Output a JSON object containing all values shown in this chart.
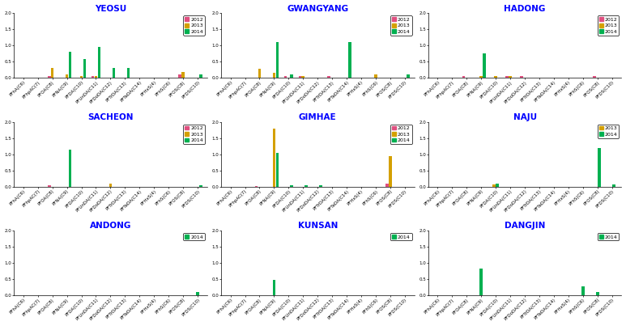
{
  "categories": [
    "PFhA(C6)",
    "PFhpAC(7)",
    "PFOA(C8)",
    "PFNA(C9)",
    "PFDA(C10)",
    "PFUnDA(C11)",
    "PFDoDA(C12)",
    "PFTrDA(C13)",
    "PFTeDA(C14)",
    "PFHxS(4)",
    "PFhS(C6)",
    "PFOS(C8)",
    "PFDS(C10)"
  ],
  "colors": {
    "2012": "#e05080",
    "2013": "#d4a000",
    "2014": "#00b050"
  },
  "subplots": [
    {
      "title": "YEOSU",
      "legend_years": [
        "2012",
        "2013",
        "2014"
      ],
      "data": {
        "2012": [
          0,
          0,
          0.05,
          0,
          0,
          0.05,
          0,
          0,
          0,
          0,
          0,
          0.1,
          0
        ],
        "2013": [
          0,
          0,
          0.3,
          0.1,
          0.07,
          0.05,
          0,
          0,
          0,
          0,
          0,
          0.18,
          0
        ],
        "2014": [
          0,
          0,
          0,
          0.82,
          0.58,
          0.95,
          0.32,
          0.3,
          0,
          0,
          0,
          0,
          0.1
        ]
      }
    },
    {
      "title": "GWANGYANG",
      "legend_years": [
        "2012",
        "2013",
        "2014"
      ],
      "data": {
        "2012": [
          0,
          0,
          0,
          0,
          0.05,
          0.05,
          0,
          0.05,
          0,
          0,
          0,
          0,
          0
        ],
        "2013": [
          0,
          0,
          0.28,
          0.15,
          0,
          0.05,
          0,
          0,
          0,
          0,
          0.1,
          0,
          0
        ],
        "2014": [
          0,
          0,
          0,
          1.1,
          0.12,
          0,
          0,
          0,
          1.1,
          0,
          0,
          0,
          0.1
        ]
      }
    },
    {
      "title": "HADONG",
      "legend_years": [
        "2012",
        "2013",
        "2014"
      ],
      "data": {
        "2012": [
          0,
          0,
          0.05,
          0,
          0,
          0.05,
          0.05,
          0,
          0,
          0,
          0,
          0.05,
          0
        ],
        "2013": [
          0,
          0,
          0,
          0.05,
          0.05,
          0.05,
          0,
          0,
          0,
          0,
          0,
          0,
          0
        ],
        "2014": [
          0,
          0,
          0,
          0.75,
          0,
          0,
          0,
          0,
          0,
          0,
          0,
          0,
          0
        ]
      }
    },
    {
      "title": "SACHEON",
      "legend_years": [
        "2012",
        "2013",
        "2014"
      ],
      "data": {
        "2012": [
          0,
          0,
          0.05,
          0,
          0,
          0,
          0,
          0,
          0,
          0,
          0,
          0,
          0
        ],
        "2013": [
          0,
          0,
          0,
          0,
          0,
          0,
          0.1,
          0,
          0,
          0,
          0,
          0,
          0
        ],
        "2014": [
          0,
          0,
          0,
          1.15,
          0,
          0,
          0,
          0,
          0,
          0,
          0,
          0,
          0.05
        ]
      }
    },
    {
      "title": "GIMHAE",
      "legend_years": [
        "2012",
        "2013",
        "2014"
      ],
      "data": {
        "2012": [
          0,
          0,
          0.03,
          0,
          0,
          0,
          0,
          0,
          0,
          0,
          0,
          0.1,
          0
        ],
        "2013": [
          0,
          0,
          0,
          1.8,
          0,
          0,
          0,
          0,
          0,
          0,
          0,
          0.95,
          0
        ],
        "2014": [
          0,
          0,
          0,
          1.05,
          0.05,
          0.05,
          0.05,
          0,
          0,
          0,
          0,
          0,
          0
        ]
      }
    },
    {
      "title": "NAJU",
      "legend_years": [
        "2013",
        "2014"
      ],
      "data": {
        "2013": [
          0,
          0,
          0,
          0,
          0.07,
          0,
          0,
          0,
          0,
          0,
          0,
          0,
          0
        ],
        "2014": [
          0,
          0,
          0,
          0,
          0.1,
          0,
          0,
          0,
          0,
          0,
          0,
          1.2,
          0.07
        ]
      }
    },
    {
      "title": "ANDONG",
      "legend_years": [
        "2014"
      ],
      "data": {
        "2014": [
          0,
          0,
          0,
          0,
          0,
          0,
          0,
          0,
          0,
          0,
          0,
          0,
          0.1
        ]
      }
    },
    {
      "title": "KUNSAN",
      "legend_years": [
        "2014"
      ],
      "data": {
        "2014": [
          0,
          0,
          0,
          0.47,
          0,
          0,
          0,
          0,
          0,
          0,
          0,
          0,
          0
        ]
      }
    },
    {
      "title": "DANGJIN",
      "legend_years": [
        "2014"
      ],
      "data": {
        "2014": [
          0,
          0,
          0,
          0.82,
          0,
          0,
          0,
          0,
          0,
          0,
          0.28,
          0.1,
          0
        ]
      }
    }
  ],
  "ylim": [
    0,
    2.0
  ],
  "yticks": [
    0.0,
    0.5,
    1.0,
    1.5,
    2.0
  ],
  "figsize": [
    7.73,
    4.03
  ],
  "dpi": 100,
  "background": "#ffffff",
  "title_color": "blue",
  "title_fontsize": 7.5,
  "tick_fontsize": 4.0,
  "legend_fontsize": 4.5
}
